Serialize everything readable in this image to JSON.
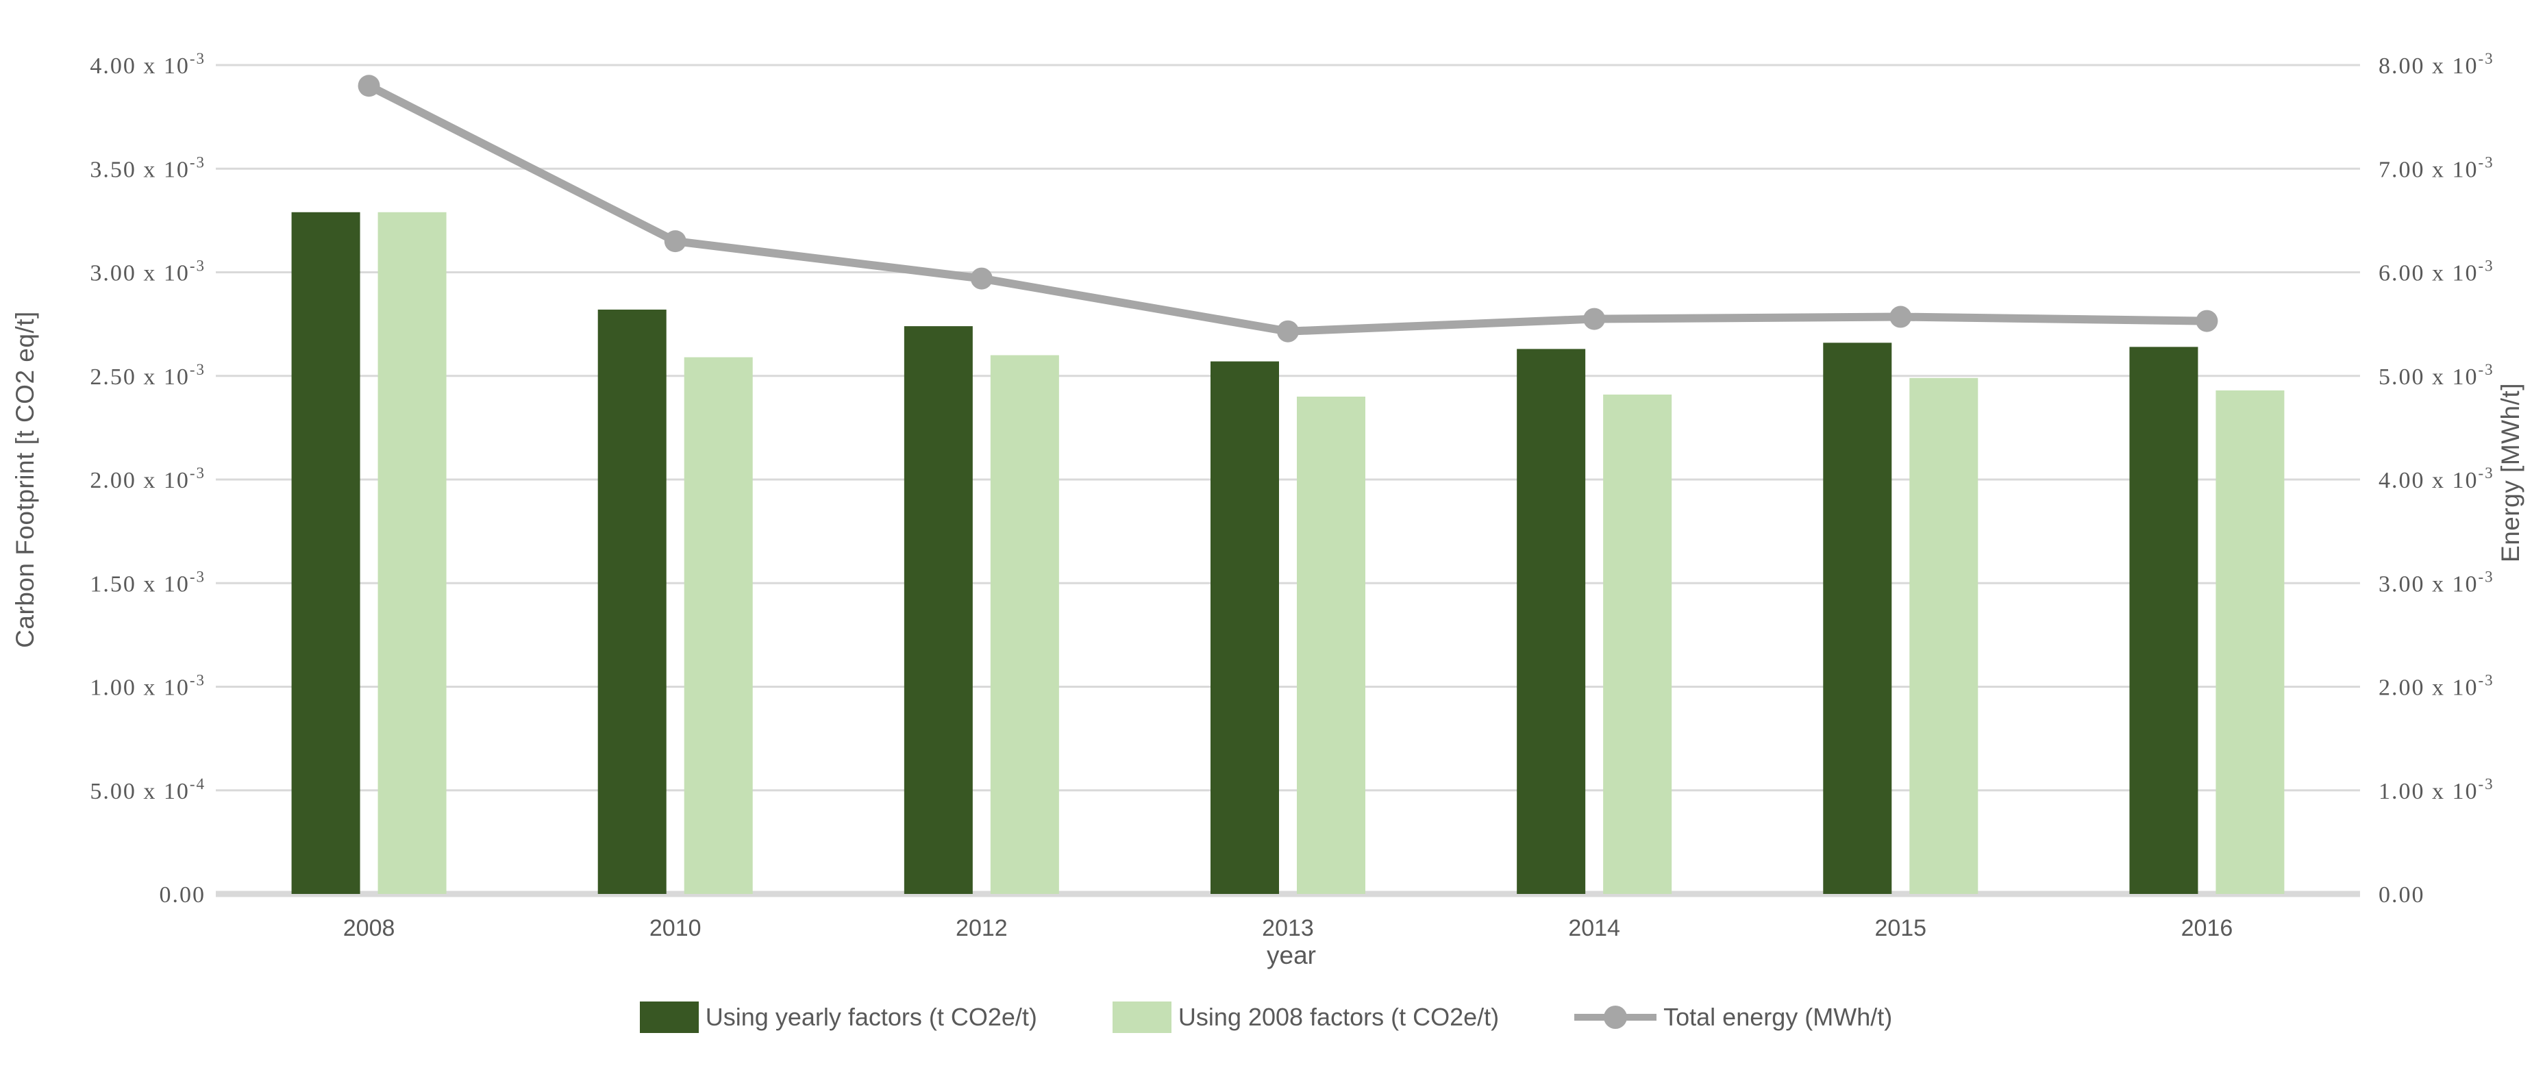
{
  "chart_data": {
    "type": "bar",
    "subtype": "combo-bar-line-dual-axis",
    "categories": [
      "2008",
      "2010",
      "2012",
      "2013",
      "2014",
      "2015",
      "2016"
    ],
    "series": [
      {
        "name": "Using yearly factors (t CO2e/t)",
        "type": "bar",
        "axis": "left",
        "color": "#385723",
        "values": [
          0.00329,
          0.00282,
          0.00274,
          0.00257,
          0.00263,
          0.00266,
          0.00264
        ]
      },
      {
        "name": "Using 2008 factors (t CO2e/t)",
        "type": "bar",
        "axis": "left",
        "color": "#C5E0B4",
        "values": [
          0.00329,
          0.00259,
          0.0026,
          0.0024,
          0.00241,
          0.00249,
          0.00243
        ]
      },
      {
        "name": "Total energy (MWh/t)",
        "type": "line",
        "axis": "right",
        "color": "#A6A6A6",
        "values": [
          0.0078,
          0.0063,
          0.00594,
          0.00543,
          0.00555,
          0.00557,
          0.00553
        ]
      }
    ],
    "xlabel": "year",
    "left_axis": {
      "title": "Carbon Footprint [t CO2 eq/t]",
      "min": 0,
      "max": 0.004,
      "ticks": [
        {
          "v": 0.0,
          "t": "0.00",
          "s": ""
        },
        {
          "v": 0.0005,
          "t": "5.00 x 10",
          "s": "-4"
        },
        {
          "v": 0.001,
          "t": "1.00 x 10",
          "s": "-3"
        },
        {
          "v": 0.0015,
          "t": "1.50 x 10",
          "s": "-3"
        },
        {
          "v": 0.002,
          "t": "2.00 x 10",
          "s": "-3"
        },
        {
          "v": 0.0025,
          "t": "2.50 x 10",
          "s": "-3"
        },
        {
          "v": 0.003,
          "t": "3.00 x 10",
          "s": "-3"
        },
        {
          "v": 0.0035,
          "t": "3.50 x 10",
          "s": "-3"
        },
        {
          "v": 0.004,
          "t": "4.00 x 10",
          "s": "-3"
        }
      ]
    },
    "right_axis": {
      "title": "Energy [MWh/t]",
      "min": 0,
      "max": 0.008,
      "ticks": [
        {
          "v": 0.0,
          "t": "0.00",
          "s": ""
        },
        {
          "v": 0.001,
          "t": "1.00 x 10",
          "s": "-3"
        },
        {
          "v": 0.002,
          "t": "2.00 x 10",
          "s": "-3"
        },
        {
          "v": 0.003,
          "t": "3.00 x 10",
          "s": "-3"
        },
        {
          "v": 0.004,
          "t": "4.00 x 10",
          "s": "-3"
        },
        {
          "v": 0.005,
          "t": "5.00 x 10",
          "s": "-3"
        },
        {
          "v": 0.006,
          "t": "6.00 x 10",
          "s": "-3"
        },
        {
          "v": 0.007,
          "t": "7.00 x 10",
          "s": "-3"
        },
        {
          "v": 0.008,
          "t": "8.00 x 10",
          "s": "-3"
        }
      ]
    },
    "grid": true,
    "legend_position": "bottom",
    "colors": {
      "grid": "#D9D9D9",
      "baseline": "#D9D9D9",
      "text": "#595959"
    }
  }
}
